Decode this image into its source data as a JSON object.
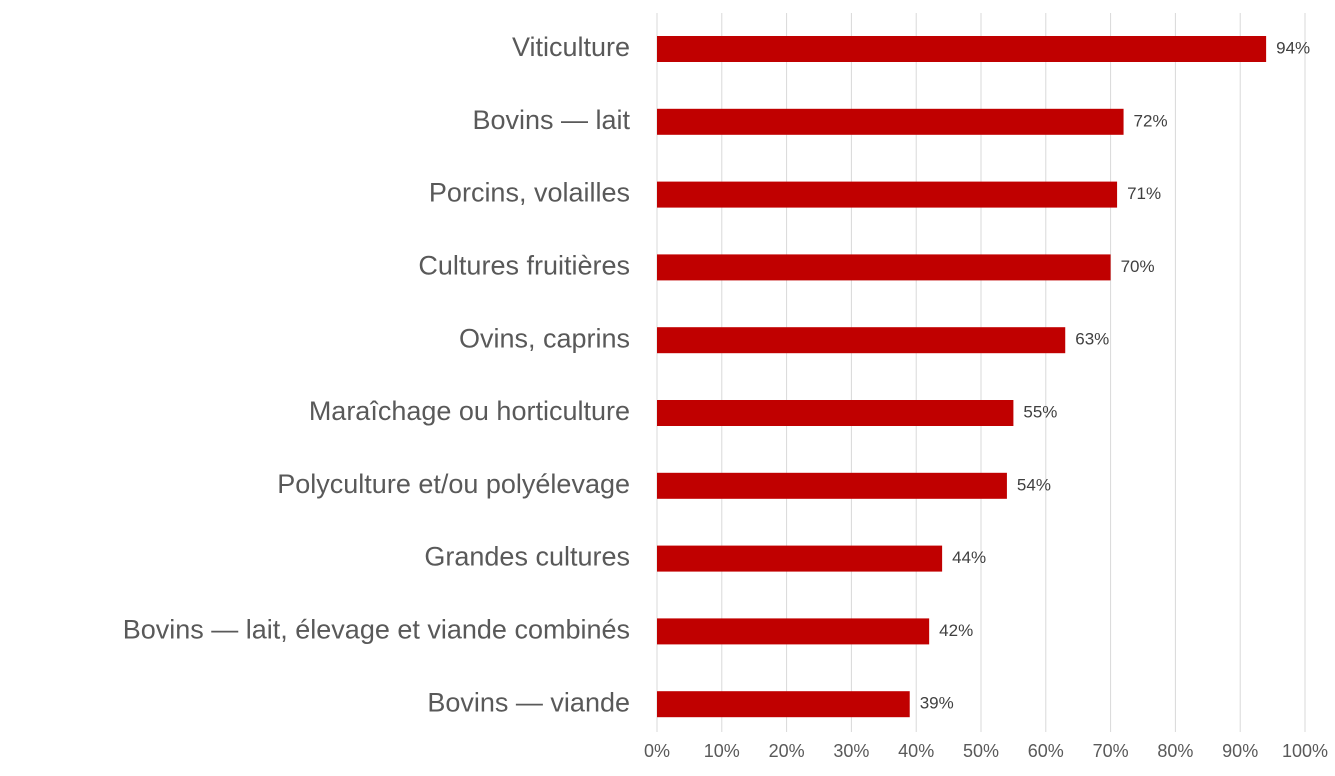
{
  "chart_data": {
    "type": "bar",
    "orientation": "horizontal",
    "categories": [
      "Viticulture",
      "Bovins — lait",
      "Porcins, volailles",
      "Cultures fruitières",
      "Ovins, caprins",
      "Maraîchage ou horticulture",
      "Polyculture et/ou polyélevage",
      "Grandes cultures",
      "Bovins — lait, élevage et viande combinés",
      "Bovins — viande"
    ],
    "values": [
      94,
      72,
      71,
      70,
      63,
      55,
      54,
      44,
      42,
      39
    ],
    "value_labels": [
      "94%",
      "72%",
      "71%",
      "70%",
      "63%",
      "55%",
      "54%",
      "44%",
      "42%",
      "39%"
    ],
    "color": "#c00000",
    "xlim": [
      0,
      100
    ],
    "xticks": [
      {
        "value": 0,
        "label": "0%"
      },
      {
        "value": 10,
        "label": "10%"
      },
      {
        "value": 20,
        "label": "20%"
      },
      {
        "value": 30,
        "label": "30%"
      },
      {
        "value": 40,
        "label": "40%"
      },
      {
        "value": 50,
        "label": "50%"
      },
      {
        "value": 60,
        "label": "60%"
      },
      {
        "value": 70,
        "label": "70%"
      },
      {
        "value": 80,
        "label": "80%"
      },
      {
        "value": 90,
        "label": "90%"
      },
      {
        "value": 100,
        "label": "100%"
      }
    ],
    "grid": true
  }
}
